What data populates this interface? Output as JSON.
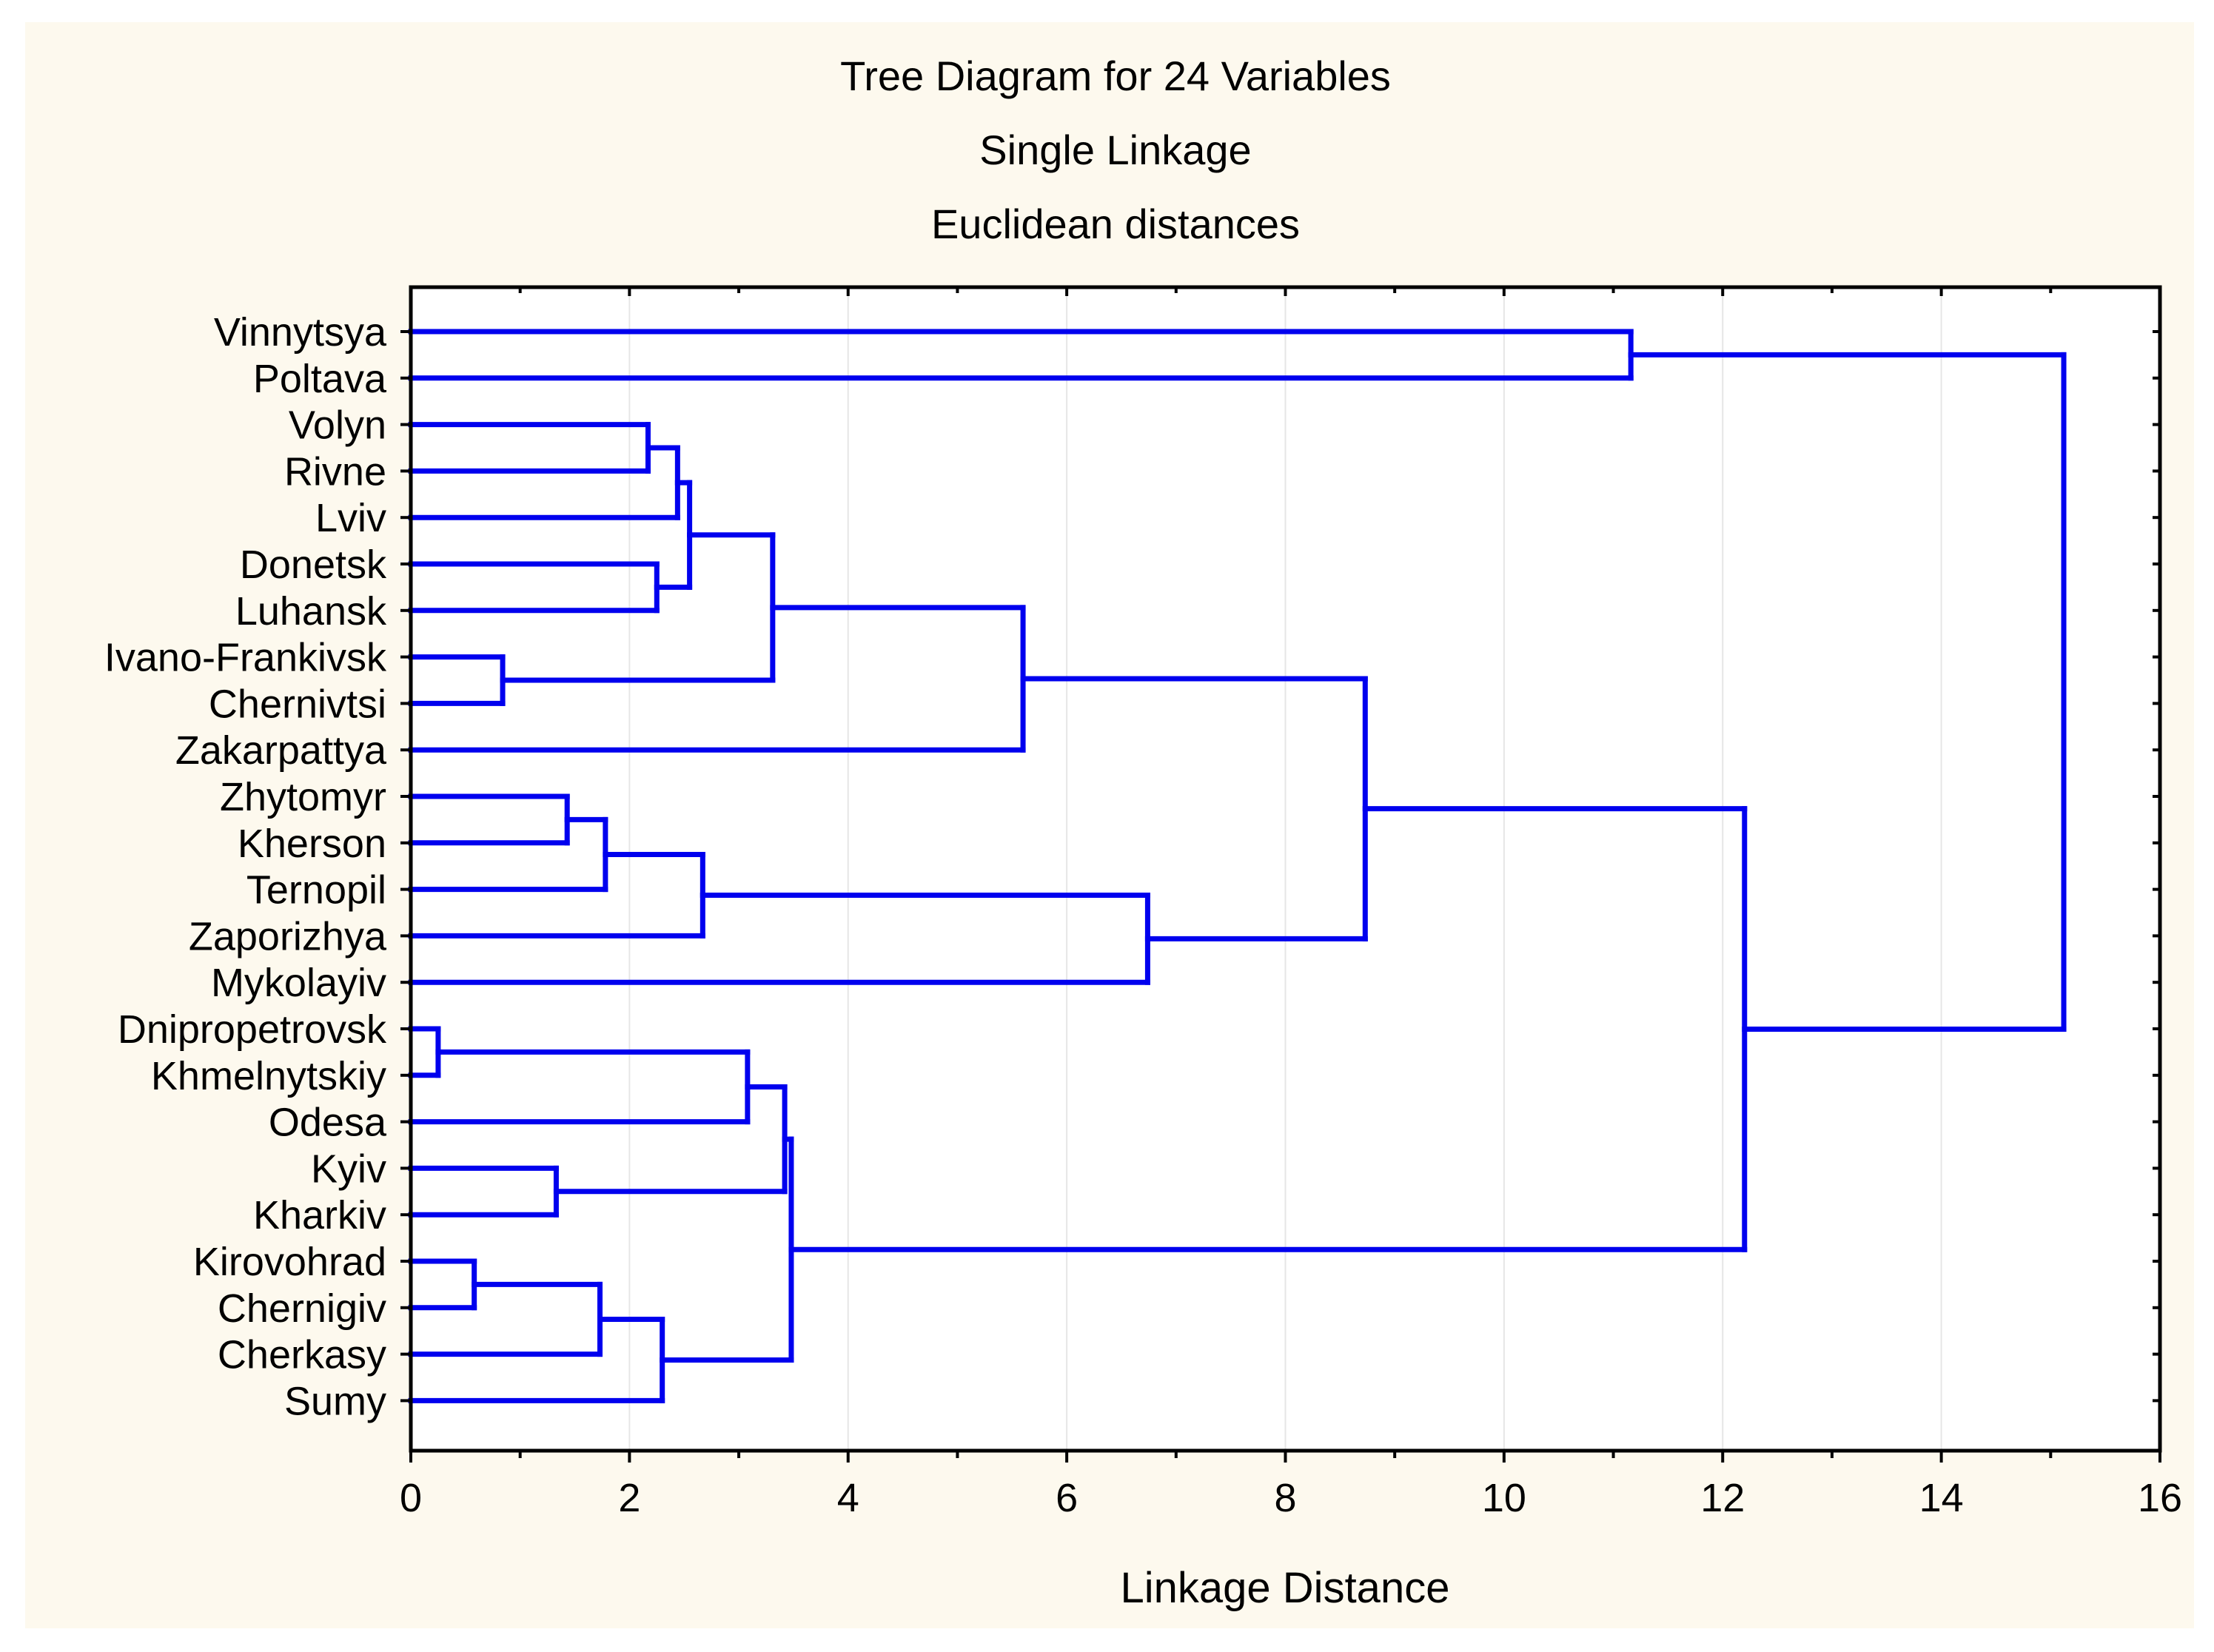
{
  "chart_data": {
    "type": "dendrogram",
    "title": "Tree Diagram for 24  Variables",
    "subtitle_1": "Single Linkage",
    "subtitle_2": "Euclidean distances",
    "xlabel": "Linkage Distance",
    "xlim": [
      0,
      16
    ],
    "xticks": [
      "0",
      "2",
      "4",
      "6",
      "8",
      "10",
      "12",
      "14",
      "16"
    ],
    "grid": "vertical light lines at major ticks",
    "line_color": "#0000ee",
    "background_color": "#fdf9ee",
    "leaves": [
      "Vinnytsya",
      "Poltava",
      "Volyn",
      "Rivne",
      "Lviv",
      "Donetsk",
      "Luhansk",
      "Ivano-Frankivsk",
      "Chernivtsi",
      "Zakarpattya",
      "Zhytomyr",
      "Kherson",
      "Ternopil",
      "Zaporizhya",
      "Mykolayiv",
      "Dnipropetrovsk",
      "Khmelnytskiy",
      "Odesa",
      "Kyiv",
      "Kharkiv",
      "Kirovohrad",
      "Chernigiv",
      "Cherkasy",
      "Sumy"
    ],
    "merges": [
      {
        "a": "Dnipropetrovsk",
        "b": "Khmelnytskiy",
        "distance": 0.25
      },
      {
        "a": "Kirovohrad",
        "b": "Chernigiv",
        "distance": 0.58
      },
      {
        "a": "Ivano-Frankivsk",
        "b": "Chernivtsi",
        "distance": 0.84
      },
      {
        "a": "Kyiv",
        "b": "Kharkiv",
        "distance": 1.33
      },
      {
        "a": "Zhytomyr",
        "b": "Kherson",
        "distance": 1.43
      },
      {
        "a": "Cluster(Kirovohrad,Chernigiv)",
        "b": "Cherkasy",
        "distance": 1.73
      },
      {
        "a": "Cluster(Zhytomyr,Kherson)",
        "b": "Ternopil",
        "distance": 1.78
      },
      {
        "a": "Volyn",
        "b": "Rivne",
        "distance": 2.17
      },
      {
        "a": "Donetsk",
        "b": "Luhansk",
        "distance": 2.25
      },
      {
        "a": "Cluster(Kirovohrad..Cherkasy)",
        "b": "Sumy",
        "distance": 2.3
      },
      {
        "a": "Cluster(Volyn,Rivne)",
        "b": "Lviv",
        "distance": 2.44
      },
      {
        "a": "Cluster(Volyn..Lviv)",
        "b": "Cluster(Donetsk,Luhansk)",
        "distance": 2.55
      },
      {
        "a": "Cluster(Zhytomyr..Ternopil)",
        "b": "Zaporizhya",
        "distance": 2.67
      },
      {
        "a": "Cluster(Dnipropetrovsk,Khmelnytskiy)",
        "b": "Odesa",
        "distance": 3.08
      },
      {
        "a": "Cluster(Volyn..Luhansk)",
        "b": "Cluster(Ivano-Frankivsk,Chernivtsi)",
        "distance": 3.31
      },
      {
        "a": "Cluster(Dnipropetrovsk..Odesa)",
        "b": "Cluster(Kyiv,Kharkiv)",
        "distance": 3.42
      },
      {
        "a": "Cluster(Dnipropetrovsk..Kharkiv)",
        "b": "Cluster(Kirovohrad..Sumy)",
        "distance": 3.48
      },
      {
        "a": "Cluster(Volyn..Chernivtsi)",
        "b": "Zakarpattya",
        "distance": 5.6
      },
      {
        "a": "Cluster(Zhytomyr..Zaporizhya)",
        "b": "Mykolayiv",
        "distance": 6.74
      },
      {
        "a": "Cluster(Volyn..Zakarpattya)",
        "b": "Cluster(Zhytomyr..Mykolayiv)",
        "distance": 8.73
      },
      {
        "a": "Vinnytsya",
        "b": "Poltava",
        "distance": 11.16
      },
      {
        "a": "Cluster(Volyn..Mykolayiv)",
        "b": "Cluster(Dnipropetrovsk..Sumy)",
        "distance": 12.2
      },
      {
        "a": "Cluster(Vinnytsya,Poltava)",
        "b": "Cluster(Volyn..Sumy)",
        "distance": 15.12
      }
    ]
  }
}
